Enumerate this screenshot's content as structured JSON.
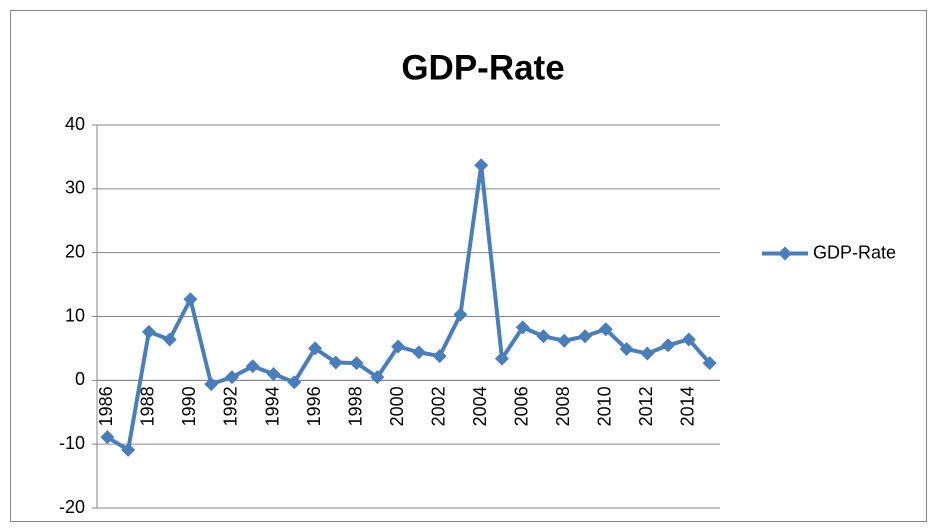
{
  "chart_data": {
    "type": "line",
    "title": "GDP-Rate",
    "categories": [
      "1986",
      null,
      "1988",
      null,
      "1990",
      null,
      "1992",
      null,
      "1994",
      null,
      "1996",
      null,
      "1998",
      null,
      "2000",
      null,
      "2002",
      null,
      "2004",
      null,
      "2006",
      null,
      "2008",
      null,
      "2010",
      null,
      "2012",
      null,
      "2014",
      null
    ],
    "series": [
      {
        "name": "GDP-Rate",
        "color": "#4a7ebb",
        "values": [
          -8.9,
          -10.9,
          7.6,
          6.4,
          12.7,
          -0.6,
          0.5,
          2.2,
          1.0,
          -0.3,
          5.0,
          2.8,
          2.7,
          0.5,
          5.3,
          4.4,
          3.8,
          10.3,
          33.7,
          3.4,
          8.3,
          6.9,
          6.2,
          6.9,
          8.0,
          4.9,
          4.2,
          5.5,
          6.4,
          2.7
        ]
      }
    ],
    "ylim": [
      -20,
      40
    ],
    "yticks": [
      -20,
      -10,
      0,
      10,
      20,
      30,
      40
    ],
    "grid": true,
    "legend": "right"
  }
}
